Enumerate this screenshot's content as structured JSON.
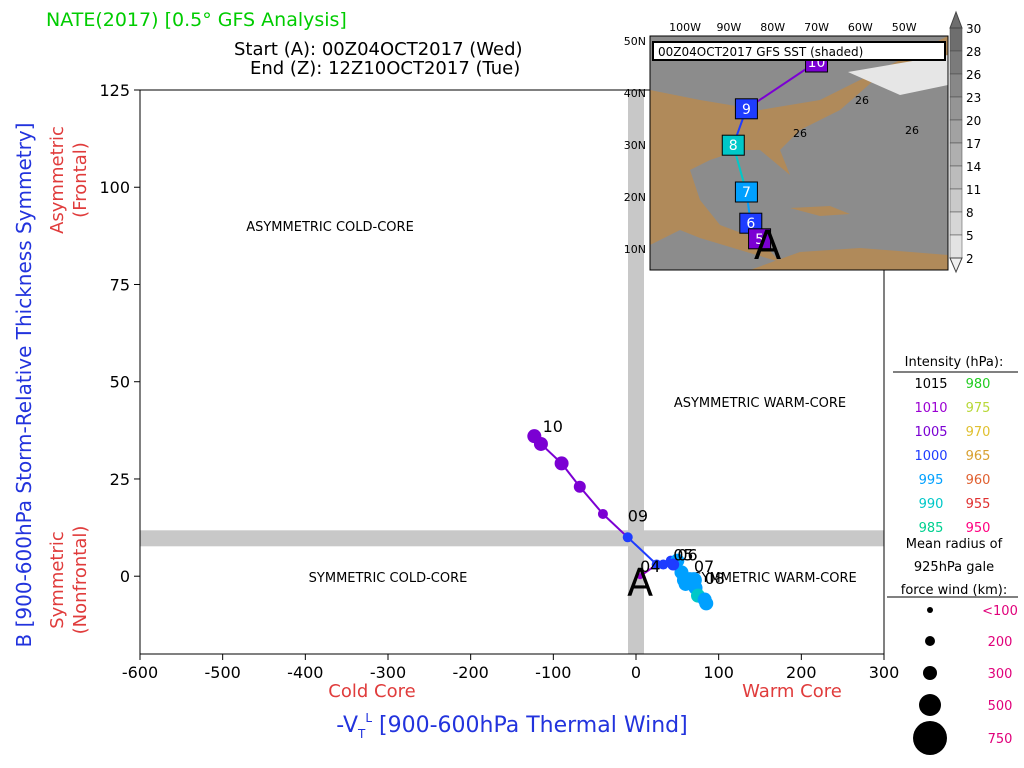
{
  "header": {
    "title": "NATE(2017) [0.5° GFS Analysis]",
    "start": "Start (A): 00Z04OCT2017 (Wed)",
    "end": "End (Z): 12Z10OCT2017 (Tue)",
    "title_color": "#00cc00"
  },
  "chart_data": {
    "type": "scatter",
    "title": "NATE(2017) [0.5° GFS Analysis]",
    "xlabel": "-V_T^L [900-600hPa Thermal Wind]",
    "ylabel": "B [900-600hPa Storm-Relative Thickness Symmetry]",
    "xlim": [
      -600,
      300
    ],
    "ylim": [
      -20,
      125
    ],
    "xticks": [
      -600,
      -500,
      -400,
      -300,
      -200,
      -100,
      0,
      100,
      200,
      300
    ],
    "yticks": [
      0,
      25,
      50,
      75,
      100,
      125
    ],
    "x_side_labels": {
      "left": "Cold Core",
      "right": "Warm Core"
    },
    "y_side_labels": {
      "top_line1": "Asymmetric",
      "top_line2": "(Frontal)",
      "bottom_line1": "Symmetric",
      "bottom_line2": "(Nonfrontal)"
    },
    "quadrant_labels": {
      "top_left": "ASYMMETRIC COLD-CORE",
      "top_right": "ASYMMETRIC WARM-CORE",
      "bottom_left": "SYMMETRIC COLD-CORE",
      "bottom_right": "SYMMETRIC WARM-CORE"
    },
    "start_marker": "A",
    "track": [
      {
        "x": 5,
        "y": 0,
        "color": "#9b00d3",
        "r": 3
      },
      {
        "x": 25,
        "y": 3,
        "color": "#9b00d3",
        "r": 4
      },
      {
        "x": 33,
        "y": 3,
        "color": "#1e3cff",
        "r": 5
      },
      {
        "x": 42,
        "y": 4,
        "color": "#1e3cff",
        "r": 5
      },
      {
        "x": 50,
        "y": 4,
        "color": "#00a0ff",
        "r": 7
      },
      {
        "x": 55,
        "y": 1,
        "color": "#00a0ff",
        "r": 7
      },
      {
        "x": 58,
        "y": -1,
        "color": "#00a0ff",
        "r": 7
      },
      {
        "x": 65,
        "y": -1,
        "color": "#00a0ff",
        "r": 8
      },
      {
        "x": 70,
        "y": -1,
        "color": "#00a0ff",
        "r": 8
      },
      {
        "x": 72,
        "y": -3,
        "color": "#00a0ff",
        "r": 7
      },
      {
        "x": 75,
        "y": -5,
        "color": "#00c8c8",
        "r": 7
      },
      {
        "x": 83,
        "y": -6,
        "color": "#00a0ff",
        "r": 7
      },
      {
        "x": 85,
        "y": -7,
        "color": "#00a0ff",
        "r": 7
      },
      {
        "x": 60,
        "y": -2,
        "color": "#00a0ff",
        "r": 7
      },
      {
        "x": 45,
        "y": 3,
        "color": "#1e3cff",
        "r": 6
      },
      {
        "x": 25,
        "y": 3,
        "color": "#1e3cff",
        "r": 5
      },
      {
        "x": -10,
        "y": 10,
        "color": "#1e3cff",
        "r": 5
      },
      {
        "x": -40,
        "y": 16,
        "color": "#7b00d3",
        "r": 5
      },
      {
        "x": -68,
        "y": 23,
        "color": "#7b00d3",
        "r": 6
      },
      {
        "x": -90,
        "y": 29,
        "color": "#7b00d3",
        "r": 7
      },
      {
        "x": -115,
        "y": 34,
        "color": "#7b00d3",
        "r": 7
      },
      {
        "x": -123,
        "y": 36,
        "color": "#7b00d3",
        "r": 7
      }
    ],
    "day_labels": [
      {
        "text": "04",
        "x": 5,
        "y": 0
      },
      {
        "text": "05",
        "x": 45,
        "y": 3
      },
      {
        "text": "06",
        "x": 50,
        "y": 3
      },
      {
        "text": "07",
        "x": 70,
        "y": 0
      },
      {
        "text": "08",
        "x": 83,
        "y": -3
      },
      {
        "text": "09",
        "x": -10,
        "y": 13
      },
      {
        "text": "10",
        "x": -113,
        "y": 36
      }
    ],
    "legend": {
      "intensity_title": "Intensity (hPa):",
      "intensity": [
        {
          "value": "1015",
          "color": "#000000"
        },
        {
          "value": "980",
          "color": "#22cc22"
        },
        {
          "value": "1010",
          "color": "#9b00d3"
        },
        {
          "value": "975",
          "color": "#b8d838"
        },
        {
          "value": "1005",
          "color": "#7b00d3"
        },
        {
          "value": "970",
          "color": "#e0c030"
        },
        {
          "value": "1000",
          "color": "#1e3cff"
        },
        {
          "value": "965",
          "color": "#d8a030"
        },
        {
          "value": "995",
          "color": "#00a0ff"
        },
        {
          "value": "960",
          "color": "#e06030"
        },
        {
          "value": "990",
          "color": "#00c8c8"
        },
        {
          "value": "955",
          "color": "#e03030"
        },
        {
          "value": "985",
          "color": "#00d090"
        },
        {
          "value": "950",
          "color": "#ff0080"
        }
      ],
      "radius_title": "Mean radius of 925hPa gale force wind (km):",
      "radius_title_lines": [
        "Mean radius of",
        "925hPa gale",
        "force wind (km):"
      ],
      "radius": [
        {
          "label": "<100",
          "size": 3
        },
        {
          "label": "200",
          "size": 5
        },
        {
          "label": "300",
          "size": 7
        },
        {
          "label": "500",
          "size": 11
        },
        {
          "label": "750",
          "size": 17
        }
      ],
      "radius_label_color": "#e0007a"
    },
    "inset": {
      "title": "00Z04OCT2017 GFS SST (shaded)",
      "lon_labels": [
        "100W",
        "90W",
        "80W",
        "70W",
        "60W",
        "50W"
      ],
      "lat_labels": [
        "50N",
        "40N",
        "30N",
        "20N",
        "10N"
      ],
      "colorbar_labels": [
        "30",
        "28",
        "26",
        "23",
        "20",
        "17",
        "14",
        "11",
        "8",
        "5",
        "2"
      ],
      "sst_contour_labels": [
        "26",
        "26",
        "26"
      ],
      "track_labels": [
        {
          "text": "10",
          "lon": -70,
          "lat": 46,
          "color": "#7b00d3"
        },
        {
          "text": "9",
          "lon": -86,
          "lat": 37,
          "color": "#1e3cff"
        },
        {
          "text": "8",
          "lon": -89,
          "lat": 30,
          "color": "#00c8c8"
        },
        {
          "text": "7",
          "lon": -86,
          "lat": 21,
          "color": "#00a0ff"
        },
        {
          "text": "6",
          "lon": -85,
          "lat": 15,
          "color": "#1e3cff"
        },
        {
          "text": "5",
          "lon": -83,
          "lat": 12,
          "color": "#7b00d3"
        }
      ],
      "start_marker": "A"
    }
  }
}
